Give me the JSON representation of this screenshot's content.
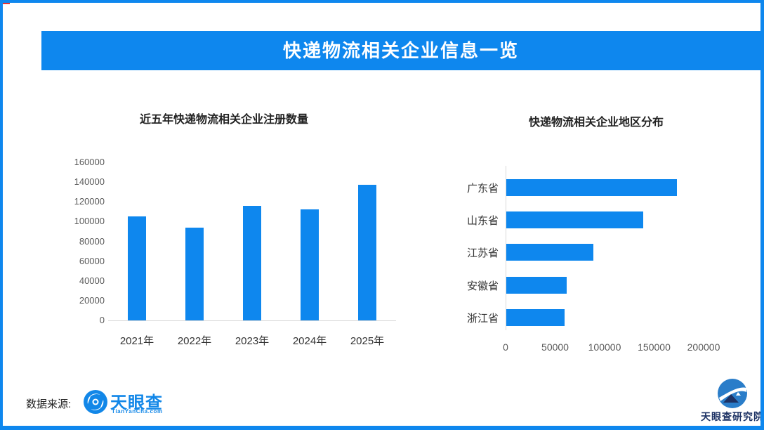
{
  "banner": {
    "title": "快递物流相关企业信息一览"
  },
  "colors": {
    "accent_blue": "#0e87ee",
    "axis_line_gray": "#d9d9d9",
    "tick_text_gray": "#595959",
    "logo_blue": "#1287e8",
    "research_navy": "#1d3264",
    "corner_red": "#e53333"
  },
  "footer": {
    "source_label": "数据来源:",
    "tianyancha_logo_text": "天眼查",
    "tianyancha_logo_sub": "TianYanCha.com",
    "research_institute_label": "天眼查研究院"
  },
  "chart_data": [
    {
      "type": "bar",
      "orientation": "vertical",
      "title": "近五年快递物流相关企业注册数量",
      "categories": [
        "2021年",
        "2022年",
        "2023年",
        "2024年",
        "2025年"
      ],
      "values": [
        105000,
        94000,
        116000,
        112000,
        137000
      ],
      "xlabel": "",
      "ylabel": "",
      "ylim": [
        0,
        160000
      ],
      "ytick_step": 20000,
      "grid": false,
      "legend": false,
      "bar_color": "#0e87ee"
    },
    {
      "type": "bar",
      "orientation": "horizontal",
      "title": "快递物流相关企业地区分布",
      "categories": [
        "广东省",
        "山东省",
        "江苏省",
        "安徽省",
        "浙江省"
      ],
      "values": [
        172000,
        138000,
        88000,
        61000,
        59000
      ],
      "xlabel": "",
      "ylabel": "",
      "xlim": [
        0,
        200000
      ],
      "xtick_step": 50000,
      "grid": false,
      "legend": false,
      "bar_color": "#0e87ee"
    }
  ]
}
